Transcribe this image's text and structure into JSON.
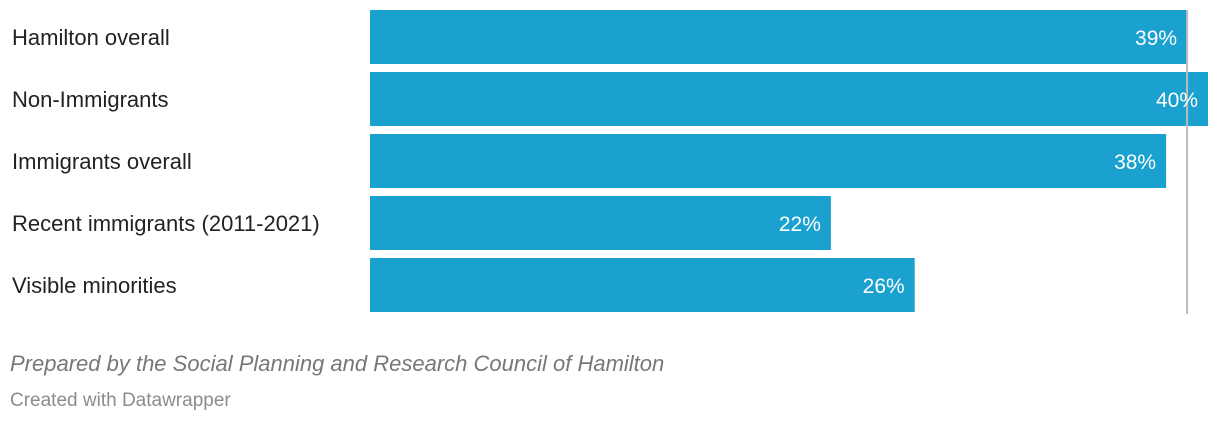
{
  "chart_data": {
    "type": "bar",
    "orientation": "horizontal",
    "categories": [
      "Hamilton overall",
      "Non-Immigrants",
      "Immigrants overall",
      "Recent immigrants (2011-2021)",
      "Visible minorities"
    ],
    "values": [
      39,
      40,
      38,
      22,
      26
    ],
    "value_labels": [
      "39%",
      "40%",
      "38%",
      "22%",
      "26%"
    ],
    "reference_value": 39,
    "xlim": [
      0,
      40
    ],
    "bar_color": "#1ba1cf",
    "reference_line_color": "#bbbbbb"
  },
  "notes": "Prepared by the Social Planning and Research Council of Hamilton",
  "credit": "Created with Datawrapper"
}
